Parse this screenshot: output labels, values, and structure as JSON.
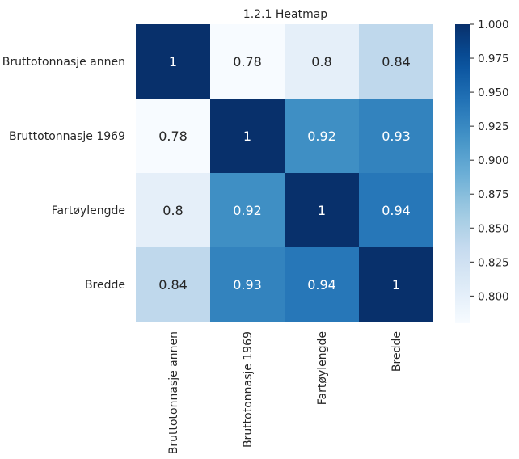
{
  "chart_data": {
    "type": "heatmap",
    "title": "1.2.1 Heatmap",
    "rows": [
      "Bruttotonnasje annen",
      "Bruttotonnasje 1969",
      "Fartøylengde",
      "Bredde"
    ],
    "cols": [
      "Bruttotonnasje annen",
      "Bruttotonnasje 1969",
      "Fartøylengde",
      "Bredde"
    ],
    "values": [
      [
        1,
        0.78,
        0.8,
        0.84
      ],
      [
        0.78,
        1,
        0.92,
        0.93
      ],
      [
        0.8,
        0.92,
        1,
        0.94
      ],
      [
        0.84,
        0.93,
        0.94,
        1
      ]
    ],
    "annotations": [
      [
        "1",
        "0.78",
        "0.8",
        "0.84"
      ],
      [
        "0.78",
        "1",
        "0.92",
        "0.93"
      ],
      [
        "0.8",
        "0.92",
        "1",
        "0.94"
      ],
      [
        "0.84",
        "0.93",
        "0.94",
        "1"
      ]
    ],
    "colormap": "Blues",
    "colorbar": {
      "range": [
        0.78,
        1.0
      ],
      "ticks": [
        "0.800",
        "0.825",
        "0.850",
        "0.875",
        "0.900",
        "0.925",
        "0.950",
        "0.975",
        "1.000"
      ]
    }
  }
}
